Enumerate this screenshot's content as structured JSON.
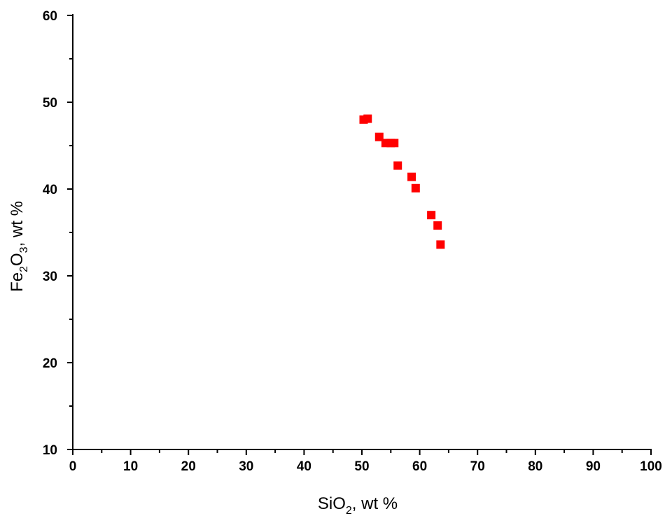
{
  "chart_data": {
    "type": "scatter",
    "title": "",
    "xlabel": {
      "parts": [
        {
          "text": "SiO",
          "sub": false
        },
        {
          "text": "2",
          "sub": true
        },
        {
          "text": ", wt %",
          "sub": false
        }
      ]
    },
    "ylabel": {
      "parts": [
        {
          "text": "Fe",
          "sub": false
        },
        {
          "text": "2",
          "sub": true
        },
        {
          "text": "O",
          "sub": false
        },
        {
          "text": "3",
          "sub": true
        },
        {
          "text": ", wt %",
          "sub": false
        }
      ]
    },
    "xlim": [
      0,
      100
    ],
    "ylim": [
      10,
      60
    ],
    "xticks": [
      0,
      10,
      20,
      30,
      40,
      50,
      60,
      70,
      80,
      90,
      100
    ],
    "yticks": [
      10,
      20,
      30,
      40,
      50,
      60
    ],
    "grid": false,
    "legend": false,
    "marker": {
      "shape": "square",
      "color": "#ff0000"
    },
    "series": [
      {
        "points": [
          {
            "x": 50.3,
            "y": 48.0
          },
          {
            "x": 51.0,
            "y": 48.1
          },
          {
            "x": 53.0,
            "y": 46.0
          },
          {
            "x": 54.1,
            "y": 45.3
          },
          {
            "x": 55.0,
            "y": 45.3
          },
          {
            "x": 55.6,
            "y": 45.3
          },
          {
            "x": 56.2,
            "y": 42.7
          },
          {
            "x": 58.6,
            "y": 41.4
          },
          {
            "x": 59.3,
            "y": 40.1
          },
          {
            "x": 62.0,
            "y": 37.0
          },
          {
            "x": 63.1,
            "y": 35.8
          },
          {
            "x": 63.6,
            "y": 33.6
          }
        ]
      }
    ]
  }
}
